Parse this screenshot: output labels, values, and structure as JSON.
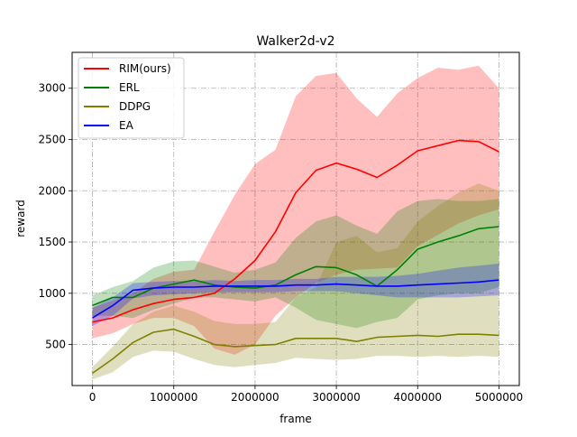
{
  "chart_data": {
    "type": "line",
    "title": "Walker2d-v2",
    "xlabel": "frame",
    "ylabel": "reward",
    "xlim": [
      -250000,
      5250000
    ],
    "ylim": [
      100,
      3350
    ],
    "xticks": [
      0,
      1000000,
      2000000,
      3000000,
      4000000,
      5000000
    ],
    "xtick_labels": [
      "0",
      "1000000",
      "2000000",
      "3000000",
      "4000000",
      "5000000"
    ],
    "yticks": [
      500,
      1000,
      1500,
      2000,
      2500,
      3000
    ],
    "ytick_labels": [
      "500",
      "1000",
      "1500",
      "2000",
      "2500",
      "3000"
    ],
    "grid": true,
    "legend_position": "top-left",
    "series": [
      {
        "name": "RIM(ours)",
        "color": "#ff0000",
        "x": [
          0,
          250000,
          500000,
          750000,
          1000000,
          1250000,
          1500000,
          1750000,
          2000000,
          2250000,
          2500000,
          2750000,
          3000000,
          3250000,
          3500000,
          3750000,
          4000000,
          4250000,
          4500000,
          4750000,
          5000000
        ],
        "mean": [
          720,
          760,
          840,
          900,
          940,
          960,
          1000,
          1140,
          1320,
          1600,
          1980,
          2200,
          2270,
          2210,
          2130,
          2250,
          2390,
          2440,
          2490,
          2480,
          2380
        ],
        "lower": [
          560,
          610,
          700,
          760,
          760,
          680,
          460,
          400,
          500,
          780,
          960,
          1100,
          1180,
          1230,
          1240,
          1250,
          1460,
          1570,
          1680,
          1760,
          1820
        ],
        "upper": [
          860,
          930,
          1000,
          1140,
          1210,
          1230,
          1600,
          1960,
          2260,
          2400,
          2920,
          3120,
          3150,
          2900,
          2720,
          2950,
          3100,
          3200,
          3180,
          3220,
          3000
        ]
      },
      {
        "name": "ERL",
        "color": "#008000",
        "x": [
          0,
          250000,
          500000,
          750000,
          1000000,
          1250000,
          1500000,
          1750000,
          2000000,
          2250000,
          2500000,
          2750000,
          3000000,
          3250000,
          3500000,
          3750000,
          4000000,
          4250000,
          4500000,
          4750000,
          5000000
        ],
        "mean": [
          880,
          960,
          960,
          1050,
          1090,
          1130,
          1080,
          1060,
          1050,
          1080,
          1180,
          1260,
          1250,
          1180,
          1070,
          1230,
          1430,
          1500,
          1560,
          1630,
          1650
        ],
        "lower": [
          780,
          780,
          760,
          840,
          900,
          960,
          960,
          940,
          920,
          960,
          860,
          740,
          700,
          660,
          720,
          760,
          940,
          980,
          1000,
          1000,
          1060
        ],
        "upper": [
          980,
          1060,
          1120,
          1250,
          1310,
          1320,
          1260,
          1200,
          1230,
          1300,
          1540,
          1700,
          1760,
          1660,
          1580,
          1800,
          1900,
          1920,
          1900,
          1900,
          1920
        ]
      },
      {
        "name": "DDPG",
        "color": "#808000",
        "x": [
          0,
          250000,
          500000,
          750000,
          1000000,
          1250000,
          1500000,
          1750000,
          2000000,
          2250000,
          2500000,
          2750000,
          3000000,
          3250000,
          3500000,
          3750000,
          4000000,
          4250000,
          4500000,
          4750000,
          5000000
        ],
        "mean": [
          220,
          360,
          520,
          620,
          650,
          580,
          500,
          480,
          490,
          500,
          560,
          560,
          560,
          530,
          570,
          580,
          590,
          580,
          600,
          600,
          590
        ],
        "lower": [
          160,
          230,
          380,
          440,
          430,
          360,
          300,
          280,
          300,
          320,
          370,
          360,
          350,
          360,
          390,
          390,
          380,
          390,
          380,
          390,
          380
        ],
        "upper": [
          280,
          480,
          700,
          820,
          880,
          820,
          730,
          700,
          700,
          720,
          960,
          1060,
          1500,
          1560,
          1400,
          1440,
          1700,
          1850,
          1980,
          2070,
          2000
        ]
      },
      {
        "name": "EA",
        "color": "#0000ff",
        "x": [
          0,
          250000,
          500000,
          750000,
          1000000,
          1250000,
          1500000,
          1750000,
          2000000,
          2250000,
          2500000,
          2750000,
          3000000,
          3250000,
          3500000,
          3750000,
          4000000,
          4250000,
          4500000,
          4750000,
          5000000
        ],
        "mean": [
          760,
          880,
          1030,
          1050,
          1060,
          1060,
          1070,
          1070,
          1070,
          1070,
          1080,
          1080,
          1090,
          1080,
          1070,
          1070,
          1080,
          1090,
          1100,
          1110,
          1130
        ],
        "lower": [
          680,
          780,
          950,
          980,
          990,
          1000,
          1010,
          1010,
          1010,
          1010,
          1020,
          1020,
          1020,
          1000,
          980,
          960,
          960,
          960,
          960,
          970,
          980
        ],
        "upper": [
          860,
          960,
          1100,
          1110,
          1120,
          1120,
          1130,
          1120,
          1130,
          1130,
          1140,
          1140,
          1160,
          1160,
          1160,
          1170,
          1190,
          1220,
          1250,
          1270,
          1290
        ]
      }
    ]
  }
}
